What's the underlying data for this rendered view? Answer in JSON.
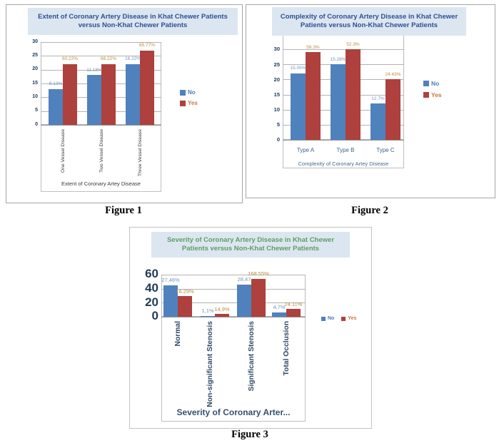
{
  "colors": {
    "bar_no": "#4f81bd",
    "bar_yes": "#ae403d",
    "label_no": "#7494bd",
    "label_yes": "#c08a3e",
    "legend_no_text": "#4a7ebb",
    "legend_yes_text": "#c07840",
    "title_blue": "#2f4f92",
    "title_green": "#5f9e63",
    "band_bg": "#dce6f1",
    "grid": "#b3b3b3"
  },
  "figures": [
    {
      "caption": "Figure 1"
    },
    {
      "caption": "Figure 2"
    },
    {
      "caption": "Figure 3"
    }
  ],
  "chart_data": [
    {
      "type": "bar",
      "title": "Extent of Coronary Artery Disease in Khat Chewer Patients versus Non-Khat Chewer Patients",
      "xlabel": "Extent of Coronary Artey Disease",
      "ylabel": "",
      "categories": [
        "One Vessel Disease",
        "Two Vessel Disease",
        "Three Vessel Disease"
      ],
      "series": [
        {
          "name": "No",
          "values": [
            13,
            18,
            22
          ],
          "labels": [
            "8.13%",
            "11.18%",
            "16.22%"
          ]
        },
        {
          "name": "Yes",
          "values": [
            22,
            22,
            27
          ],
          "labels": [
            "60.22%",
            "66.22%",
            "65.77%"
          ]
        }
      ],
      "ylim": [
        0,
        30
      ],
      "yticks": [
        0,
        5,
        10,
        15,
        20,
        25,
        30
      ],
      "grid": true,
      "legend_position": "right",
      "title_color": "#2f4f92"
    },
    {
      "type": "bar",
      "title": "Complexity of Coronary Artery Disease in Khat Chewer Patients versus Non-Khat Chewer Patients",
      "xlabel": "Complexity of Coronary Artey Disease",
      "ylabel": "",
      "categories": [
        "Type A",
        "Type B",
        "Type C"
      ],
      "series": [
        {
          "name": "No",
          "values": [
            22,
            25,
            12
          ],
          "labels": [
            "15.05%",
            "15.28%",
            "12.7%"
          ]
        },
        {
          "name": "Yes",
          "values": [
            29,
            30,
            20
          ],
          "labels": [
            "58.3%",
            "52.3%",
            "24.43%"
          ]
        }
      ],
      "ylim": [
        0,
        35
      ],
      "yticks": [
        0,
        5,
        10,
        15,
        20,
        25,
        30,
        35
      ],
      "grid": true,
      "legend_position": "right",
      "title_color": "#2f4f92"
    },
    {
      "type": "bar",
      "title": "Severity of Coronary Artery Disease in Khat Chewer Patients versus Non-Khat Chewer Patients",
      "xlabel": "Severity of Coronary Arter...",
      "ylabel": "",
      "categories": [
        "Normal",
        "Non-significant Stenosis",
        "Significant Stenosis",
        "Total Occlusion"
      ],
      "series": [
        {
          "name": "No",
          "values": [
            45,
            1.5,
            46,
            6.5
          ],
          "labels": [
            "27,46%",
            "1,1%",
            "28,47",
            "4,7%"
          ]
        },
        {
          "name": "Yes",
          "values": [
            29,
            4,
            54,
            11
          ],
          "labels": [
            "16.29%",
            "14,9%",
            "168.55%",
            "24.11%"
          ]
        }
      ],
      "ylim": [
        0,
        60
      ],
      "yticks": [
        0,
        20,
        40,
        60
      ],
      "grid": true,
      "legend_position": "bottom-right",
      "title_color": "#5f9e63"
    }
  ]
}
